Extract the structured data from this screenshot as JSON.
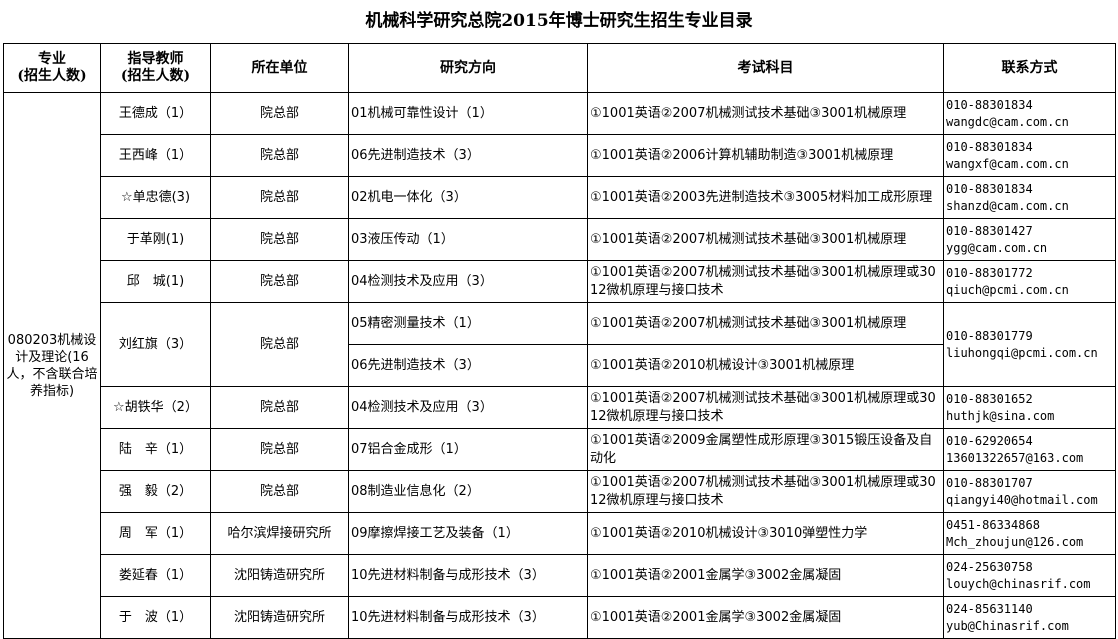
{
  "title": "机械科学研究总院2015年博士研究生招生专业目录",
  "headers": {
    "major": [
      "专业",
      "(招生人数)"
    ],
    "advisor": [
      "指导教师",
      "(招生人数)"
    ],
    "unit": "所在单位",
    "direction": "研究方向",
    "exam": "考试科目",
    "contact": "联系方式"
  },
  "major": "080203机械设计及理论(16人，不含联合培养指标)",
  "rows": [
    {
      "advisor": "王德成（1）",
      "unit": "院总部",
      "directions": [
        {
          "direction": "01机械可靠性设计（1）",
          "exam": "①1001英语②2007机械测试技术基础③3001机械原理"
        }
      ],
      "phone": "010-88301834",
      "email": "wangdc@cam.com.cn"
    },
    {
      "advisor": "王西峰（1）",
      "unit": "院总部",
      "directions": [
        {
          "direction": "06先进制造技术（3）",
          "exam": "①1001英语②2006计算机辅助制造③3001机械原理"
        }
      ],
      "phone": "010-88301834",
      "email": "wangxf@cam.com.cn"
    },
    {
      "advisor": "☆单忠德(3)",
      "unit": "院总部",
      "directions": [
        {
          "direction": "02机电一体化（3）",
          "exam": "①1001英语②2003先进制造技术③3005材料加工成形原理"
        }
      ],
      "phone": "010-88301834",
      "email": "shanzd@cam.com.cn"
    },
    {
      "advisor": "于革刚(1)",
      "unit": "院总部",
      "directions": [
        {
          "direction": "03液压传动（1）",
          "exam": "①1001英语②2007机械测试技术基础③3001机械原理"
        }
      ],
      "phone": "010-88301427",
      "email": "ygg@cam.com.cn"
    },
    {
      "advisor": "邱　城(1)",
      "unit": "院总部",
      "directions": [
        {
          "direction": "04检测技术及应用（3）",
          "exam": "①1001英语②2007机械测试技术基础③3001机械原理或3012微机原理与接口技术"
        }
      ],
      "phone": "010-88301772",
      "email": "qiuch@pcmi.com.cn"
    },
    {
      "advisor": "刘红旗（3）",
      "unit": "院总部",
      "directions": [
        {
          "direction": "05精密测量技术（1）",
          "exam": "①1001英语②2007机械测试技术基础③3001机械原理"
        },
        {
          "direction": "06先进制造技术（3）",
          "exam": "①1001英语②2010机械设计③3001机械原理"
        }
      ],
      "phone": "010-88301779",
      "email": "liuhongqi@pcmi.com.cn"
    },
    {
      "advisor": "☆胡铁华（2）",
      "unit": "院总部",
      "directions": [
        {
          "direction": "04检测技术及应用（3）",
          "exam": "①1001英语②2007机械测试技术基础③3001机械原理或3012微机原理与接口技术"
        }
      ],
      "phone": "010-88301652",
      "email": "huthjk@sina.com"
    },
    {
      "advisor": "陆　辛（1）",
      "unit": "院总部",
      "directions": [
        {
          "direction": "07铝合金成形（1）",
          "exam": "①1001英语②2009金属塑性成形原理③3015锻压设备及自动化"
        }
      ],
      "phone": "010-62920654",
      "email": "13601322657@163.com"
    },
    {
      "advisor": "强　毅（2）",
      "unit": "院总部",
      "directions": [
        {
          "direction": "08制造业信息化（2）",
          "exam": "①1001英语②2007机械测试技术基础③3001机械原理或3012微机原理与接口技术"
        }
      ],
      "phone": "010-88301707",
      "email": "qiangyi40@hotmail.com"
    },
    {
      "advisor": "周　军（1）",
      "unit": "哈尔滨焊接研究所",
      "directions": [
        {
          "direction": "09摩擦焊接工艺及装备（1）",
          "exam": "①1001英语②2010机械设计③3010弹塑性力学"
        }
      ],
      "phone": "0451-86334868",
      "email": "Mch_zhoujun@126.com"
    },
    {
      "advisor": "娄延春（1）",
      "unit": "沈阳铸造研究所",
      "directions": [
        {
          "direction": "10先进材料制备与成形技术（3）",
          "exam": "①1001英语②2001金属学③3002金属凝固"
        }
      ],
      "phone": "024-25630758",
      "email": "louych@chinasrif.com"
    },
    {
      "advisor": "于　波（1）",
      "unit": "沈阳铸造研究所",
      "directions": [
        {
          "direction": "10先进材料制备与成形技术（3）",
          "exam": "①1001英语②2001金属学③3002金属凝固"
        }
      ],
      "phone": "024-85631140",
      "email": "yub@Chinasrif.com"
    }
  ]
}
